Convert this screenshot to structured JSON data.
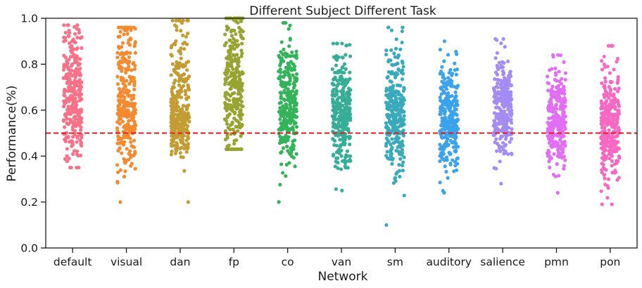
{
  "chart_data": {
    "type": "scatter",
    "subtype": "strip",
    "title": "Different Subject Different Task",
    "xlabel": "Network",
    "ylabel": "Performance(%)",
    "ylim": [
      0.0,
      1.0
    ],
    "yticks": [
      "0.0",
      "0.2",
      "0.4",
      "0.6",
      "0.8",
      "1.0"
    ],
    "reference_line": {
      "y": 0.5,
      "style": "dashed",
      "color": "#e31a1c"
    },
    "grid": false,
    "categories": [
      "default",
      "visual",
      "dan",
      "fp",
      "co",
      "van",
      "sm",
      "auditory",
      "salience",
      "pmn",
      "pon"
    ],
    "series": [
      {
        "category": "default",
        "color": "#f77189",
        "count": 300,
        "median": 0.66,
        "q1": 0.56,
        "q3": 0.79,
        "min": 0.35,
        "max": 0.97
      },
      {
        "category": "visual",
        "color": "#f48b31",
        "count": 300,
        "median": 0.62,
        "q1": 0.53,
        "q3": 0.75,
        "min": 0.2,
        "max": 0.96
      },
      {
        "category": "dan",
        "color": "#c39c32",
        "count": 300,
        "median": 0.58,
        "q1": 0.52,
        "q3": 0.72,
        "min": 0.2,
        "max": 0.99
      },
      {
        "category": "fp",
        "color": "#97a431",
        "count": 300,
        "median": 0.7,
        "q1": 0.58,
        "q3": 0.82,
        "min": 0.43,
        "max": 1.0
      },
      {
        "category": "co",
        "color": "#33b35a",
        "count": 300,
        "median": 0.6,
        "q1": 0.53,
        "q3": 0.72,
        "min": 0.2,
        "max": 0.98
      },
      {
        "category": "van",
        "color": "#36ae97",
        "count": 300,
        "median": 0.59,
        "q1": 0.52,
        "q3": 0.69,
        "min": 0.25,
        "max": 0.89
      },
      {
        "category": "sm",
        "color": "#38aabc",
        "count": 300,
        "median": 0.57,
        "q1": 0.49,
        "q3": 0.68,
        "min": 0.1,
        "max": 0.96
      },
      {
        "category": "auditory",
        "color": "#3ba3ec",
        "count": 300,
        "median": 0.56,
        "q1": 0.49,
        "q3": 0.64,
        "min": 0.24,
        "max": 0.9
      },
      {
        "category": "salience",
        "color": "#a38cf4",
        "count": 300,
        "median": 0.62,
        "q1": 0.55,
        "q3": 0.69,
        "min": 0.28,
        "max": 0.91
      },
      {
        "category": "pmn",
        "color": "#e26ef4",
        "count": 300,
        "median": 0.55,
        "q1": 0.49,
        "q3": 0.63,
        "min": 0.24,
        "max": 0.84
      },
      {
        "category": "pon",
        "color": "#f668c2",
        "count": 300,
        "median": 0.52,
        "q1": 0.44,
        "q3": 0.61,
        "min": 0.19,
        "max": 0.88
      }
    ]
  }
}
